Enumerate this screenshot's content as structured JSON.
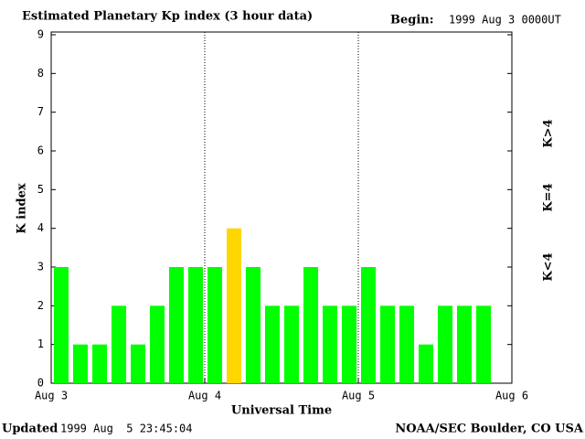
{
  "chart_data": {
    "type": "bar",
    "title": "Estimated Planetary Kp index (3 hour data)",
    "begin_label": "Begin:",
    "begin": "1999 Aug 3 0000UT",
    "y_label": "K index",
    "x_label": "Universal Time",
    "updated_label": "Updated",
    "updated": "1999 Aug  5 23:45:04",
    "source": "NOAA/SEC Boulder, CO USA",
    "categories": [
      null,
      null,
      null,
      null,
      null,
      null,
      null,
      null,
      null,
      null,
      null,
      null,
      null,
      null,
      null,
      null,
      null,
      null,
      null,
      null,
      null,
      null,
      null,
      null
    ],
    "values": [
      3,
      1,
      1,
      2,
      1,
      2,
      3,
      3,
      3,
      4,
      3,
      2,
      2,
      3,
      2,
      2,
      3,
      2,
      2,
      1,
      2,
      2,
      2,
      null
    ],
    "colors": [
      "#00ff00",
      "#00ff00",
      "#00ff00",
      "#00ff00",
      "#00ff00",
      "#00ff00",
      "#00ff00",
      "#00ff00",
      "#00ff00",
      "#ffd700",
      "#00ff00",
      "#00ff00",
      "#00ff00",
      "#00ff00",
      "#00ff00",
      "#00ff00",
      "#00ff00",
      "#00ff00",
      "#00ff00",
      "#00ff00",
      "#00ff00",
      "#00ff00",
      "#00ff00",
      null
    ],
    "ylim": [
      0,
      9
    ],
    "yticks": [
      0,
      1,
      2,
      3,
      4,
      5,
      6,
      7,
      8,
      9
    ],
    "xticks": [
      {
        "value": 0,
        "label": "Aug 3"
      },
      {
        "value": 8,
        "label": "Aug 4"
      },
      {
        "value": 16,
        "label": "Aug 5"
      },
      {
        "value": 24,
        "label": "Aug 6"
      }
    ],
    "legend": [
      {
        "label": "K<4",
        "color": "#00ff00"
      },
      {
        "label": "K=4",
        "color": "#ffd700"
      },
      {
        "label": "K>4",
        "color": "#ff2000"
      }
    ]
  }
}
